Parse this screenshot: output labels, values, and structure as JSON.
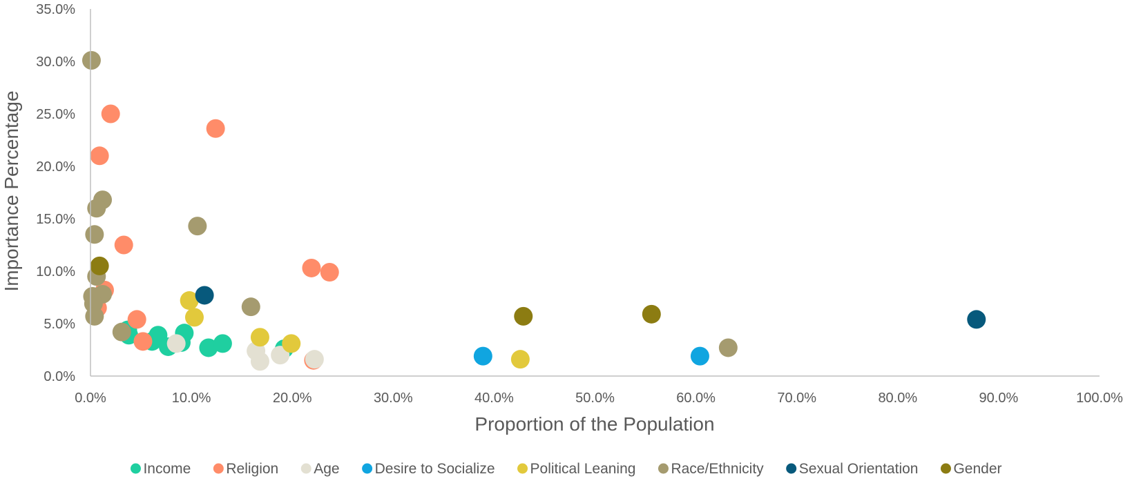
{
  "chart_data": {
    "type": "scatter",
    "title": "",
    "xlabel": "Proportion of the Population",
    "ylabel": "Importance Percentage",
    "xlim": [
      0,
      100
    ],
    "ylim": [
      0,
      35
    ],
    "x_ticks": [
      "0.0%",
      "10.0%",
      "20.0%",
      "30.0%",
      "40.0%",
      "50.0%",
      "60.0%",
      "70.0%",
      "80.0%",
      "90.0%",
      "100.0%"
    ],
    "y_ticks": [
      "0.0%",
      "5.0%",
      "10.0%",
      "15.0%",
      "20.0%",
      "25.0%",
      "30.0%",
      "35.0%"
    ],
    "grid": false,
    "legend_position": "bottom",
    "series": [
      {
        "name": "Income",
        "color": "#1fcfa0",
        "points": [
          [
            3.7,
            4.4
          ],
          [
            3.8,
            3.9
          ],
          [
            6.1,
            3.3
          ],
          [
            6.7,
            3.9
          ],
          [
            7.7,
            2.8
          ],
          [
            9.0,
            3.2
          ],
          [
            9.3,
            4.1
          ],
          [
            11.7,
            2.7
          ],
          [
            13.1,
            3.1
          ],
          [
            19.2,
            2.6
          ]
        ]
      },
      {
        "name": "Religion",
        "color": "#ff8c69",
        "points": [
          [
            2.0,
            25.0
          ],
          [
            0.9,
            21.0
          ],
          [
            12.4,
            23.6
          ],
          [
            3.3,
            12.5
          ],
          [
            1.4,
            8.2
          ],
          [
            0.7,
            6.5
          ],
          [
            4.6,
            5.4
          ],
          [
            5.2,
            3.3
          ],
          [
            22.1,
            1.5
          ],
          [
            21.9,
            10.3
          ],
          [
            23.7,
            9.9
          ]
        ]
      },
      {
        "name": "Age",
        "color": "#e3e0d2",
        "points": [
          [
            8.5,
            3.1
          ],
          [
            16.4,
            2.4
          ],
          [
            16.8,
            1.4
          ],
          [
            18.8,
            2.0
          ],
          [
            22.2,
            1.6
          ]
        ]
      },
      {
        "name": "Desire to Socialize",
        "color": "#10a5e0",
        "points": [
          [
            38.9,
            1.9
          ],
          [
            60.4,
            1.9
          ]
        ]
      },
      {
        "name": "Political Leaning",
        "color": "#e2c93c",
        "points": [
          [
            9.8,
            7.2
          ],
          [
            10.3,
            5.6
          ],
          [
            16.8,
            3.7
          ],
          [
            19.9,
            3.1
          ],
          [
            42.6,
            1.6
          ]
        ]
      },
      {
        "name": "Race/Ethnicity",
        "color": "#a59b6f",
        "points": [
          [
            0.1,
            30.1
          ],
          [
            1.2,
            16.8
          ],
          [
            0.6,
            16.0
          ],
          [
            0.4,
            13.5
          ],
          [
            10.6,
            14.3
          ],
          [
            0.6,
            9.5
          ],
          [
            0.2,
            7.6
          ],
          [
            1.2,
            7.8
          ],
          [
            0.3,
            6.9
          ],
          [
            0.4,
            5.7
          ],
          [
            3.1,
            4.2
          ],
          [
            15.9,
            6.6
          ],
          [
            63.2,
            2.7
          ]
        ]
      },
      {
        "name": "Sexual Orientation",
        "color": "#07597c",
        "points": [
          [
            11.3,
            7.7
          ],
          [
            87.8,
            5.4
          ]
        ]
      },
      {
        "name": "Gender",
        "color": "#8c7c12",
        "points": [
          [
            0.9,
            10.5
          ],
          [
            42.9,
            5.7
          ],
          [
            55.6,
            5.9
          ]
        ]
      }
    ]
  }
}
